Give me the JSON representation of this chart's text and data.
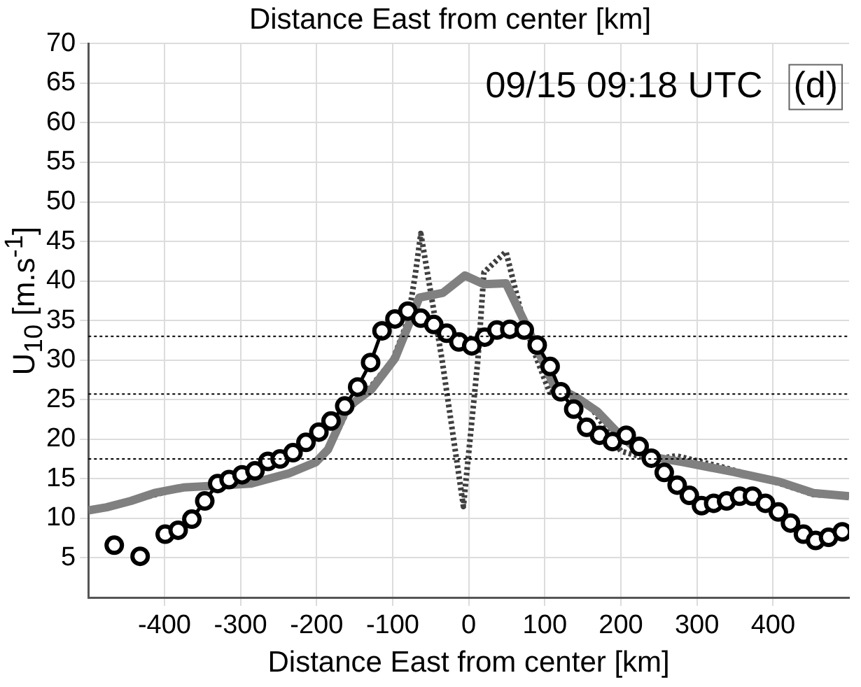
{
  "chart_data": {
    "type": "line",
    "title": "Distance East from center [km]",
    "xlabel": "Distance East from center [km]",
    "ylabel": "U$_{10}$ [m.s$^{-1}$]",
    "annotations": [
      "09/15 09:18 UTC",
      "(d)"
    ],
    "xlim": [
      -500,
      500
    ],
    "xticks": [
      -400,
      -300,
      -200,
      -100,
      0,
      100,
      200,
      300,
      400
    ],
    "ylim": [
      0,
      70
    ],
    "yticks": [
      5,
      10,
      15,
      20,
      25,
      30,
      35,
      40,
      45,
      50,
      55,
      60,
      65,
      70
    ],
    "grid": true,
    "legend": false,
    "ref_lines": [
      {
        "axis": "y",
        "value": 33,
        "color": "#000000",
        "line_style": "dotted"
      },
      {
        "axis": "y",
        "value": 25.7,
        "color": "#000000",
        "line_style": "dotted"
      },
      {
        "axis": "y",
        "value": 17.5,
        "color": "#000000",
        "line_style": "dotted"
      }
    ],
    "series": [
      {
        "color": "#808080",
        "marker": "none",
        "line_style": "solid",
        "x": [
          -500,
          -476,
          -444,
          -413,
          -375,
          -337,
          -286,
          -236,
          -201,
          -185,
          -160,
          -128,
          -97,
          -78,
          -65,
          -34,
          -5,
          20,
          49,
          74,
          93,
          112,
          143,
          169,
          200,
          232,
          282,
          346,
          409,
          453,
          500
        ],
        "values": [
          11.0,
          11.4,
          12.2,
          13.2,
          13.9,
          14.1,
          14.4,
          15.7,
          17.1,
          18.7,
          24.0,
          26.3,
          30.2,
          34.7,
          37.9,
          38.5,
          40.7,
          39.6,
          39.7,
          34.7,
          30.8,
          26.8,
          25.2,
          23.5,
          20.4,
          17.9,
          17.1,
          15.9,
          14.6,
          13.2,
          12.8
        ]
      },
      {
        "color": "#404040",
        "marker": "none",
        "line_style": "dotted",
        "x": [
          -500,
          -444,
          -375,
          -286,
          -236,
          -201,
          -180,
          -160,
          -130,
          -100,
          -80,
          -70,
          -63,
          -35,
          -7,
          12,
          20,
          49,
          71,
          90,
          106,
          130,
          159,
          200,
          240,
          273,
          333,
          409,
          453,
          500
        ],
        "values": [
          11.0,
          12.2,
          13.9,
          14.4,
          15.7,
          17.1,
          19.5,
          23.5,
          26.5,
          30.0,
          35.0,
          41.0,
          46.0,
          30.0,
          11.5,
          30.0,
          41.1,
          43.7,
          35.2,
          30.0,
          26.0,
          25.2,
          24.3,
          18.5,
          17.4,
          17.9,
          16.5,
          14.4,
          13.0,
          12.8
        ]
      },
      {
        "color": "#000000",
        "marker": "circle",
        "line_style": "solid",
        "x": [
          -466,
          -449,
          -432,
          -415,
          -399,
          -382,
          -364,
          -347,
          -330,
          -315,
          -298,
          -281,
          -264,
          -248,
          -231,
          -214,
          -197,
          -181,
          -163,
          -146,
          -129,
          -114,
          -97,
          -80,
          -63,
          -46,
          -29,
          -13,
          4,
          21,
          37,
          54,
          73,
          90,
          107,
          121,
          138,
          155,
          172,
          189,
          207,
          224,
          240,
          257,
          274,
          290,
          306,
          322,
          339,
          356,
          373,
          390,
          407,
          423,
          440,
          456,
          473,
          491
        ],
        "values": [
          6.6,
          null,
          5.2,
          null,
          8.0,
          8.5,
          9.9,
          12.2,
          14.4,
          14.9,
          15.5,
          16.0,
          17.2,
          17.5,
          18.3,
          19.6,
          20.9,
          22.3,
          24.2,
          26.6,
          29.7,
          33.7,
          35.2,
          36.2,
          35.3,
          34.5,
          33.4,
          32.3,
          31.8,
          32.9,
          33.8,
          33.9,
          33.8,
          31.9,
          29.2,
          26.0,
          23.8,
          21.5,
          20.5,
          19.7,
          20.5,
          19.1,
          17.6,
          15.8,
          14.2,
          12.9,
          11.6,
          11.9,
          12.2,
          12.8,
          12.8,
          11.9,
          10.8,
          9.4,
          8.0,
          7.2,
          7.6,
          8.3
        ]
      }
    ]
  }
}
